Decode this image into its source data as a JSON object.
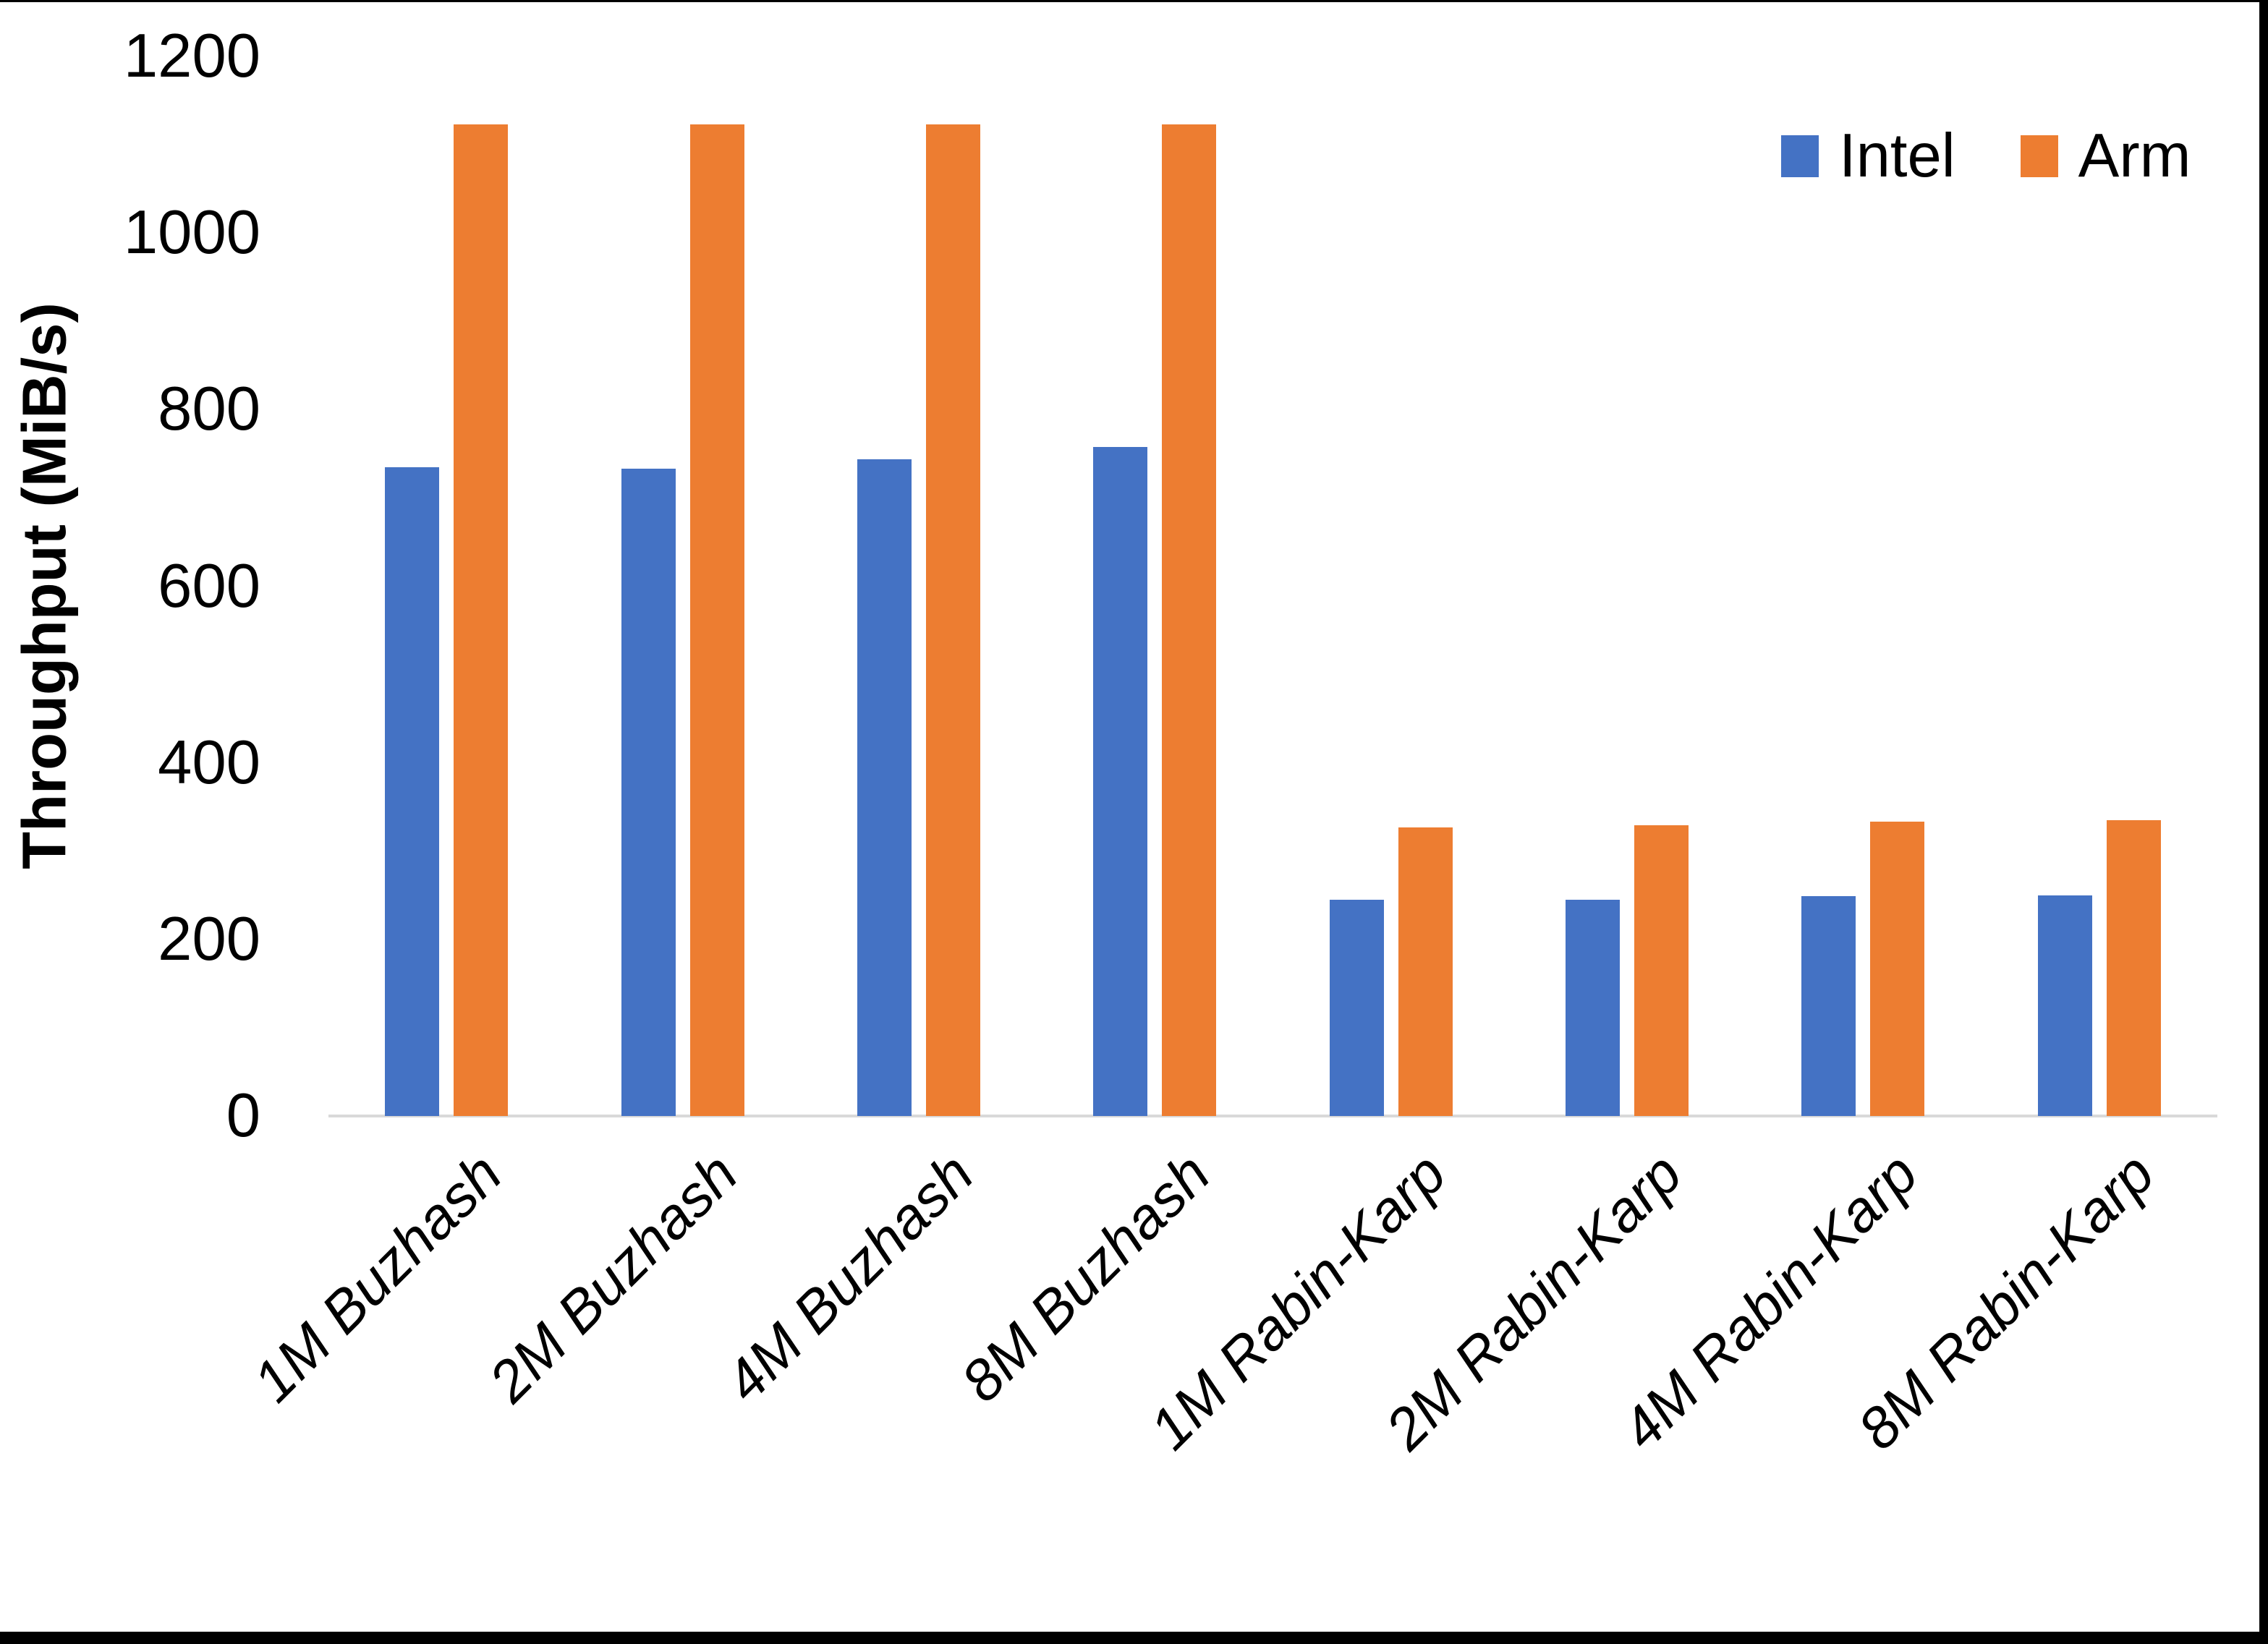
{
  "chart_data": {
    "type": "bar",
    "categories": [
      "1M Buzhash",
      "2M Buzhash",
      "4M Buzhash",
      "8M Buzhash",
      "1M Rabin-Karp",
      "2M Rabin-Karp",
      "4M Rabin-Karp",
      "8M Rabin-Karp"
    ],
    "series": [
      {
        "name": "Intel",
        "color": "#4472C4",
        "values": [
          735,
          733,
          744,
          758,
          245,
          245,
          249,
          250
        ]
      },
      {
        "name": "Arm",
        "color": "#ED7D31",
        "values": [
          1123,
          1123,
          1123,
          1123,
          327,
          329,
          333,
          335
        ]
      }
    ],
    "title": "",
    "xlabel": "",
    "ylabel": "Throughput (MiB/s)",
    "ylim": [
      0,
      1200
    ],
    "yticks": [
      0,
      200,
      400,
      600,
      800,
      1000,
      1200
    ],
    "grid": false,
    "legend_position": "top-right"
  },
  "axis": {
    "y_title": "Throughput (MiB/s)"
  },
  "legend": {
    "items": [
      {
        "label": "Intel",
        "color": "#4472C4"
      },
      {
        "label": "Arm",
        "color": "#ED7D31"
      }
    ]
  },
  "colors": {
    "axis_line": "#D9D9D9",
    "text": "#000000",
    "frame": "#000000",
    "background": "#FFFFFF"
  }
}
